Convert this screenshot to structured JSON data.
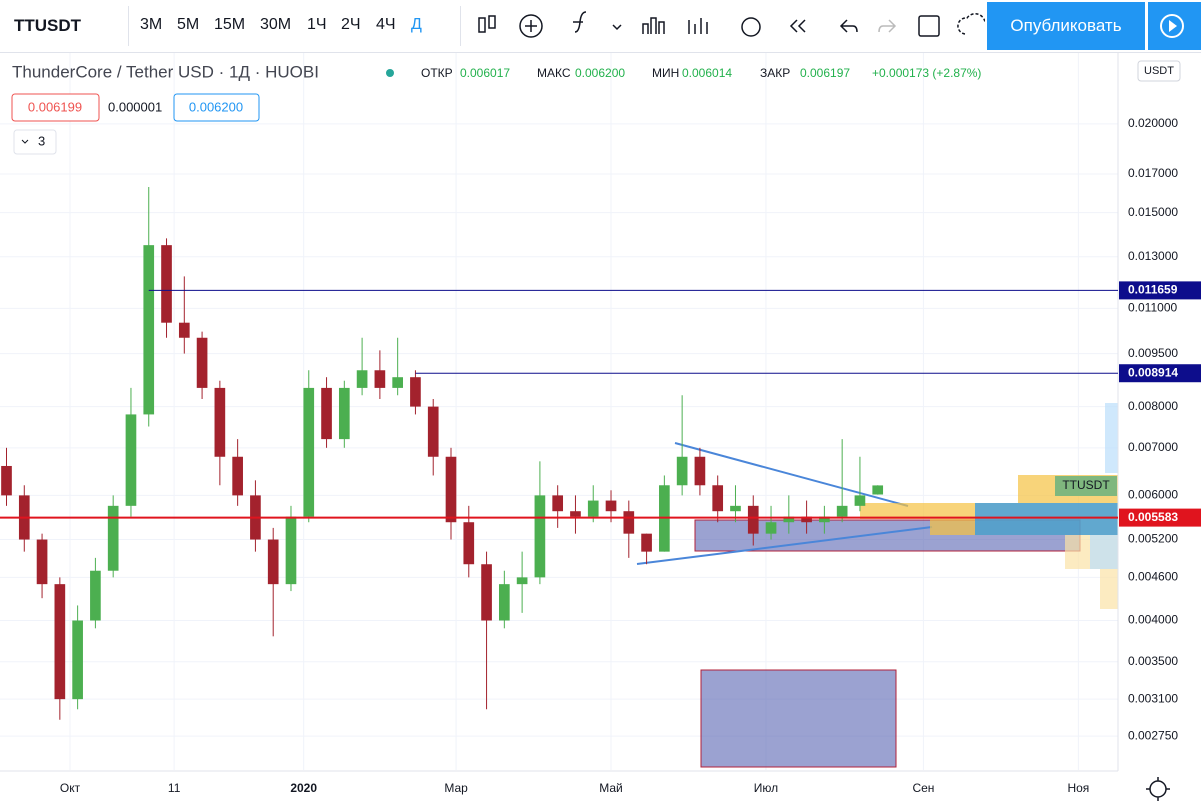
{
  "toolbar": {
    "symbol": "TTUSDT",
    "timeframes": [
      "3М",
      "5М",
      "15М",
      "30М",
      "1Ч",
      "2Ч",
      "4Ч",
      "Д"
    ],
    "publish": "Опубликовать"
  },
  "legend": {
    "title": "ThunderCore / Tether USD · 1Д · HUOBI",
    "open_label": "ОТКР",
    "open": "0.006017",
    "high_label": "МАКС",
    "high": "0.006200",
    "low_label": "МИН",
    "low": "0.006014",
    "close_label": "ЗАКР",
    "close": "0.006197",
    "change": "+0.000173 (+2.87%)",
    "bid": "0.006199",
    "spread": "0.000001",
    "ask": "0.006200",
    "indicators": "3"
  },
  "chart_data": {
    "type": "candlestick",
    "currency": "USDT",
    "symbol_label": "TTUSDT",
    "log_scale": true,
    "grid": true,
    "up_color": "#4caf50",
    "down_color": "#a3222d",
    "xlim": [
      -27.56,
      412.6
    ],
    "xticks": [
      {
        "value": 0,
        "label": "Окт"
      },
      {
        "value": 41,
        "label": "11"
      },
      {
        "value": 92,
        "label": "2020"
      },
      {
        "value": 152,
        "label": "Мар"
      },
      {
        "value": 213,
        "label": "Май"
      },
      {
        "value": 274,
        "label": "Июл"
      },
      {
        "value": 336,
        "label": "Сен"
      },
      {
        "value": 397,
        "label": "Ноя"
      }
    ],
    "ylim": [
      0.002464,
      0.02492
    ],
    "yticks": [
      {
        "value": 0.02,
        "label": "0.020000"
      },
      {
        "value": 0.017,
        "label": "0.017000"
      },
      {
        "value": 0.015,
        "label": "0.015000"
      },
      {
        "value": 0.013,
        "label": "0.013000"
      },
      {
        "value": 0.011,
        "label": "0.011000"
      },
      {
        "value": 0.0095,
        "label": "0.009500"
      },
      {
        "value": 0.008,
        "label": "0.008000"
      },
      {
        "value": 0.007,
        "label": "0.007000"
      },
      {
        "value": 0.006,
        "label": "0.006000"
      },
      {
        "value": 0.0052,
        "label": "0.005200"
      },
      {
        "value": 0.0046,
        "label": "0.004600"
      },
      {
        "value": 0.004,
        "label": "0.004000"
      },
      {
        "value": 0.0035,
        "label": "0.003500"
      },
      {
        "value": 0.0031,
        "label": "0.003100"
      },
      {
        "value": 0.00275,
        "label": "0.002750"
      }
    ],
    "x": [
      -25,
      -18,
      -11,
      -4,
      3,
      10,
      17,
      24,
      31,
      38,
      45,
      52,
      59,
      66,
      73,
      80,
      87,
      94,
      101,
      108,
      115,
      122,
      129,
      136,
      143,
      150,
      157,
      164,
      171,
      178,
      185,
      192,
      199,
      206,
      213,
      220,
      227,
      234,
      241,
      248,
      255,
      262,
      269,
      276,
      283,
      290,
      297,
      304,
      311,
      318
    ],
    "open": [
      0.0066,
      0.006,
      0.0052,
      0.0045,
      0.0031,
      0.004,
      0.0047,
      0.0058,
      0.0078,
      0.0135,
      0.0105,
      0.01,
      0.0085,
      0.0068,
      0.006,
      0.0052,
      0.0045,
      0.0056,
      0.0085,
      0.0072,
      0.0085,
      0.009,
      0.0085,
      0.0088,
      0.008,
      0.0068,
      0.0055,
      0.0048,
      0.004,
      0.0045,
      0.0046,
      0.006,
      0.0057,
      0.0056,
      0.0059,
      0.0057,
      0.0053,
      0.005,
      0.0062,
      0.0068,
      0.0062,
      0.0057,
      0.0058,
      0.0053,
      0.0055,
      0.0056,
      0.0055,
      0.0056,
      0.0058,
      0.006017
    ],
    "high": [
      0.007,
      0.0062,
      0.0053,
      0.0046,
      0.0042,
      0.0049,
      0.006,
      0.0085,
      0.0163,
      0.0138,
      0.0122,
      0.0102,
      0.0087,
      0.0072,
      0.0063,
      0.0054,
      0.0058,
      0.009,
      0.0088,
      0.0087,
      0.01,
      0.0096,
      0.01,
      0.009,
      0.0082,
      0.007,
      0.0058,
      0.005,
      0.0047,
      0.005,
      0.0067,
      0.0062,
      0.006,
      0.0062,
      0.0061,
      0.0059,
      0.0053,
      0.0064,
      0.0083,
      0.007,
      0.0064,
      0.0062,
      0.006,
      0.0058,
      0.006,
      0.0059,
      0.0058,
      0.0072,
      0.0068,
      0.0062
    ],
    "low": [
      0.0058,
      0.005,
      0.0043,
      0.0029,
      0.003,
      0.0039,
      0.0046,
      0.0056,
      0.0075,
      0.01,
      0.0095,
      0.0082,
      0.0062,
      0.0058,
      0.005,
      0.0038,
      0.0044,
      0.0055,
      0.007,
      0.007,
      0.0083,
      0.0082,
      0.0083,
      0.0078,
      0.0064,
      0.0052,
      0.0046,
      0.003,
      0.0039,
      0.0041,
      0.0045,
      0.0054,
      0.0053,
      0.0055,
      0.0055,
      0.0049,
      0.0048,
      0.005,
      0.006,
      0.006,
      0.0055,
      0.0055,
      0.0051,
      0.0052,
      0.0053,
      0.0053,
      0.0053,
      0.0055,
      0.0057,
      0.006014
    ],
    "close": [
      0.006,
      0.0052,
      0.0045,
      0.0031,
      0.004,
      0.0047,
      0.0058,
      0.0078,
      0.0135,
      0.0105,
      0.01,
      0.0085,
      0.0068,
      0.006,
      0.0052,
      0.0045,
      0.0056,
      0.0085,
      0.0072,
      0.0085,
      0.009,
      0.0085,
      0.0088,
      0.008,
      0.0068,
      0.0055,
      0.0048,
      0.004,
      0.0045,
      0.0046,
      0.006,
      0.0057,
      0.0056,
      0.0059,
      0.0057,
      0.0053,
      0.005,
      0.0062,
      0.0068,
      0.0062,
      0.0057,
      0.0058,
      0.0053,
      0.0055,
      0.0056,
      0.0055,
      0.0056,
      0.0058,
      0.006,
      0.006197
    ],
    "price_lines": [
      {
        "value": 0.011659,
        "color": "#0d0d8c",
        "from": 31
      },
      {
        "value": 0.008914,
        "color": "#0d0d8c",
        "from": 136
      },
      {
        "value": 0.005583,
        "color": "#e0141e",
        "from": -27.56
      }
    ]
  }
}
